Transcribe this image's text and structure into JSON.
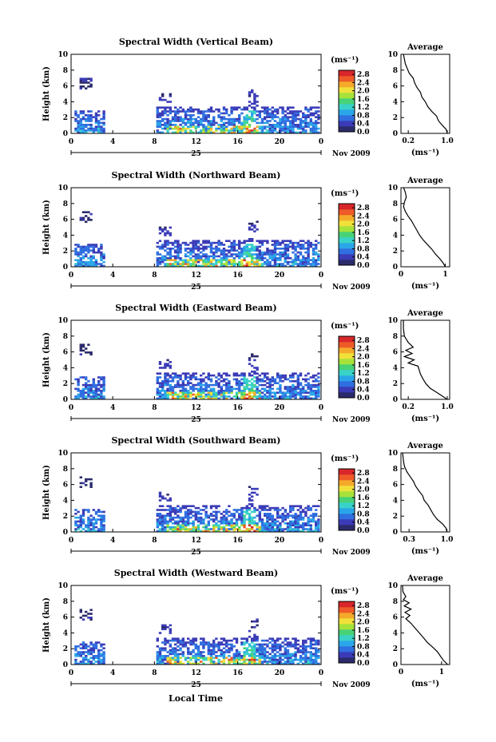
{
  "figure": {
    "xlabel": "Local Time",
    "colors": {
      "colormap": [
        "#2b2b6b",
        "#3b3bb8",
        "#2f6fe0",
        "#2aa6e8",
        "#39d2c8",
        "#48d278",
        "#a6e23a",
        "#f0e13a",
        "#f5a92a",
        "#ee5a28",
        "#d8262a"
      ],
      "profile_line": "#000000"
    }
  },
  "chart_data": [
    {
      "type": "heatmap",
      "title": "Spectral Width (Vertical Beam)",
      "ylabel": "Height (km)",
      "ylim": [
        0,
        10
      ],
      "yticks": [
        0,
        2,
        4,
        6,
        8,
        10
      ],
      "xlim": [
        0,
        24
      ],
      "xticks": [
        "0",
        "4",
        "8",
        "12",
        "16",
        "20",
        "0"
      ],
      "date_day": "25",
      "date_month": "Nov 2009",
      "colorbar": {
        "unit": "(ms⁻¹)",
        "ticks": [
          "0.0",
          "0.4",
          "0.8",
          "1.2",
          "1.6",
          "2.0",
          "2.4",
          "2.8"
        ],
        "range": [
          0,
          3.0
        ]
      },
      "profile": {
        "title": "Average",
        "xlabel": "(ms⁻¹)",
        "xticks": [
          "0.2",
          "1.0"
        ],
        "xtick_values": [
          0.2,
          1.0
        ],
        "xlim": [
          0.05,
          1.05
        ],
        "yticks": [
          "0",
          "2",
          "4",
          "6",
          "8",
          "10"
        ],
        "points": [
          [
            1.0,
            0
          ],
          [
            0.98,
            0.5
          ],
          [
            0.9,
            1.0
          ],
          [
            0.82,
            1.6
          ],
          [
            0.78,
            2.2
          ],
          [
            0.68,
            2.8
          ],
          [
            0.6,
            3.4
          ],
          [
            0.55,
            4.0
          ],
          [
            0.48,
            4.6
          ],
          [
            0.45,
            5.2
          ],
          [
            0.38,
            5.8
          ],
          [
            0.33,
            6.4
          ],
          [
            0.3,
            7.0
          ],
          [
            0.22,
            7.6
          ],
          [
            0.18,
            8.2
          ],
          [
            0.14,
            8.8
          ],
          [
            0.12,
            9.4
          ],
          [
            0.1,
            10.0
          ]
        ]
      }
    },
    {
      "type": "heatmap",
      "title": "Spectral Width (Northward Beam)",
      "ylabel": "Height (km)",
      "ylim": [
        0,
        10
      ],
      "yticks": [
        0,
        2,
        4,
        6,
        8,
        10
      ],
      "xlim": [
        0,
        24
      ],
      "xticks": [
        "0",
        "4",
        "8",
        "12",
        "16",
        "20",
        "0"
      ],
      "date_day": "25",
      "date_month": "Nov 2009",
      "colorbar": {
        "unit": "(ms⁻¹)",
        "ticks": [
          "0.0",
          "0.4",
          "0.8",
          "1.2",
          "1.6",
          "2.0",
          "2.4",
          "2.8"
        ],
        "range": [
          0,
          3.0
        ]
      },
      "profile": {
        "title": "Average",
        "xlabel": "(ms⁻¹)",
        "xticks": [
          "0",
          "1"
        ],
        "xtick_values": [
          0,
          1
        ],
        "xlim": [
          0,
          1.1
        ],
        "yticks": [
          "0",
          "2",
          "4",
          "6",
          "8",
          "10"
        ],
        "points": [
          [
            1.0,
            0
          ],
          [
            0.95,
            0.5
          ],
          [
            0.88,
            1.0
          ],
          [
            0.78,
            1.6
          ],
          [
            0.7,
            2.2
          ],
          [
            0.6,
            2.8
          ],
          [
            0.5,
            3.4
          ],
          [
            0.42,
            4.0
          ],
          [
            0.36,
            4.6
          ],
          [
            0.3,
            5.2
          ],
          [
            0.24,
            5.8
          ],
          [
            0.16,
            6.4
          ],
          [
            0.1,
            7.0
          ],
          [
            0.06,
            7.6
          ],
          [
            0.08,
            8.2
          ],
          [
            0.12,
            8.8
          ],
          [
            0.1,
            9.4
          ],
          [
            0.06,
            10.0
          ]
        ]
      }
    },
    {
      "type": "heatmap",
      "title": "Spectral Width (Eastward Beam)",
      "ylabel": "Height (km)",
      "ylim": [
        0,
        10
      ],
      "yticks": [
        0,
        2,
        4,
        6,
        8,
        10
      ],
      "xlim": [
        0,
        24
      ],
      "xticks": [
        "0",
        "4",
        "8",
        "12",
        "16",
        "20",
        "0"
      ],
      "date_day": "25",
      "date_month": "Nov 2009",
      "colorbar": {
        "unit": "(ms⁻¹)",
        "ticks": [
          "0.0",
          "0.4",
          "0.8",
          "1.2",
          "1.6",
          "2.0",
          "2.4",
          "2.8"
        ],
        "range": [
          0,
          3.0
        ]
      },
      "profile": {
        "title": "Average",
        "xlabel": "(ms⁻¹)",
        "xticks": [
          "0.2",
          "1.0"
        ],
        "xtick_values": [
          0.2,
          1.0
        ],
        "xlim": [
          0.05,
          1.05
        ],
        "yticks": [
          "0",
          "2",
          "4",
          "6",
          "8",
          "10"
        ],
        "points": [
          [
            1.0,
            0
          ],
          [
            0.9,
            0.4
          ],
          [
            0.78,
            0.9
          ],
          [
            0.65,
            1.4
          ],
          [
            0.56,
            2.0
          ],
          [
            0.5,
            2.6
          ],
          [
            0.45,
            3.2
          ],
          [
            0.42,
            3.8
          ],
          [
            0.4,
            4.2
          ],
          [
            0.2,
            4.6
          ],
          [
            0.32,
            5.0
          ],
          [
            0.12,
            5.4
          ],
          [
            0.28,
            5.8
          ],
          [
            0.15,
            6.2
          ],
          [
            0.3,
            6.6
          ],
          [
            0.2,
            7.2
          ],
          [
            0.12,
            8.0
          ],
          [
            0.1,
            9.0
          ],
          [
            0.1,
            10.0
          ]
        ]
      }
    },
    {
      "type": "heatmap",
      "title": "Spectral Width (Southward Beam)",
      "ylabel": "Height (km)",
      "ylim": [
        0,
        10
      ],
      "yticks": [
        0,
        2,
        4,
        6,
        8,
        10
      ],
      "xlim": [
        0,
        24
      ],
      "xticks": [
        "0",
        "4",
        "8",
        "12",
        "16",
        "20",
        "0"
      ],
      "date_day": "25",
      "date_month": "Nov 2009",
      "colorbar": {
        "unit": "(ms⁻¹)",
        "ticks": [
          "0.0",
          "0.4",
          "0.8",
          "1.2",
          "1.6",
          "2.0",
          "2.4",
          "2.8"
        ],
        "range": [
          0,
          3.0
        ]
      },
      "profile": {
        "title": "Average",
        "xlabel": "(ms⁻¹)",
        "xticks": [
          "0.3",
          "1.0"
        ],
        "xtick_values": [
          0.3,
          1.0
        ],
        "xlim": [
          0.15,
          1.05
        ],
        "yticks": [
          "0",
          "2",
          "4",
          "6",
          "8",
          "10"
        ],
        "points": [
          [
            1.0,
            0
          ],
          [
            0.98,
            0.5
          ],
          [
            0.92,
            1.0
          ],
          [
            0.82,
            1.6
          ],
          [
            0.75,
            2.2
          ],
          [
            0.7,
            2.8
          ],
          [
            0.65,
            3.4
          ],
          [
            0.58,
            4.0
          ],
          [
            0.55,
            4.6
          ],
          [
            0.48,
            5.2
          ],
          [
            0.42,
            5.8
          ],
          [
            0.38,
            6.4
          ],
          [
            0.32,
            7.0
          ],
          [
            0.26,
            7.6
          ],
          [
            0.22,
            8.2
          ],
          [
            0.2,
            8.8
          ],
          [
            0.19,
            9.4
          ],
          [
            0.18,
            10.0
          ]
        ]
      }
    },
    {
      "type": "heatmap",
      "title": "Spectral Width (Westward Beam)",
      "ylabel": "Height (km)",
      "ylim": [
        0,
        10
      ],
      "yticks": [
        0,
        2,
        4,
        6,
        8,
        10
      ],
      "xlim": [
        0,
        24
      ],
      "xticks": [
        "0",
        "4",
        "8",
        "12",
        "16",
        "20",
        "0"
      ],
      "date_day": "25",
      "date_month": "Nov 2009",
      "colorbar": {
        "unit": "(ms⁻¹)",
        "ticks": [
          "0.0",
          "0.4",
          "0.8",
          "1.2",
          "1.6",
          "2.0",
          "2.4",
          "2.8"
        ],
        "range": [
          0,
          3.0
        ]
      },
      "profile": {
        "title": "Average",
        "xlabel": "(ms⁻¹)",
        "xticks": [
          "0",
          "1"
        ],
        "xtick_values": [
          0,
          1
        ],
        "xlim": [
          0,
          1.2
        ],
        "yticks": [
          "0",
          "2",
          "4",
          "6",
          "8",
          "10"
        ],
        "points": [
          [
            1.15,
            0
          ],
          [
            1.05,
            0.5
          ],
          [
            0.98,
            1.0
          ],
          [
            0.9,
            1.6
          ],
          [
            0.78,
            2.2
          ],
          [
            0.65,
            2.8
          ],
          [
            0.55,
            3.4
          ],
          [
            0.45,
            4.0
          ],
          [
            0.35,
            4.6
          ],
          [
            0.25,
            5.2
          ],
          [
            0.12,
            5.8
          ],
          [
            0.22,
            6.2
          ],
          [
            0.1,
            6.6
          ],
          [
            0.25,
            7.0
          ],
          [
            0.08,
            7.4
          ],
          [
            0.2,
            7.8
          ],
          [
            0.06,
            8.2
          ],
          [
            0.12,
            8.6
          ],
          [
            0.05,
            9.2
          ],
          [
            0.04,
            10.0
          ]
        ]
      }
    }
  ]
}
